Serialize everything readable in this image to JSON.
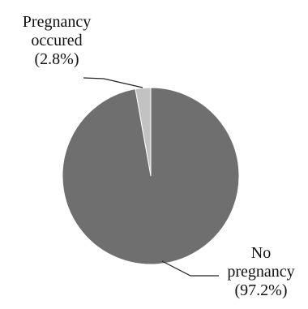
{
  "chart_data": {
    "type": "pie",
    "title": "",
    "slices": [
      {
        "label_lines": [
          "Pregnancy",
          "occured",
          "(2.8%)"
        ],
        "value": 2.8,
        "color": "#c2c2c2"
      },
      {
        "label_lines": [
          "No",
          "pregnancy",
          "(97.2%)"
        ],
        "value": 97.2,
        "color": "#6f6f6f"
      }
    ],
    "start_angle": "12 o'clock",
    "direction": "counter-clockwise",
    "legend": "none"
  }
}
